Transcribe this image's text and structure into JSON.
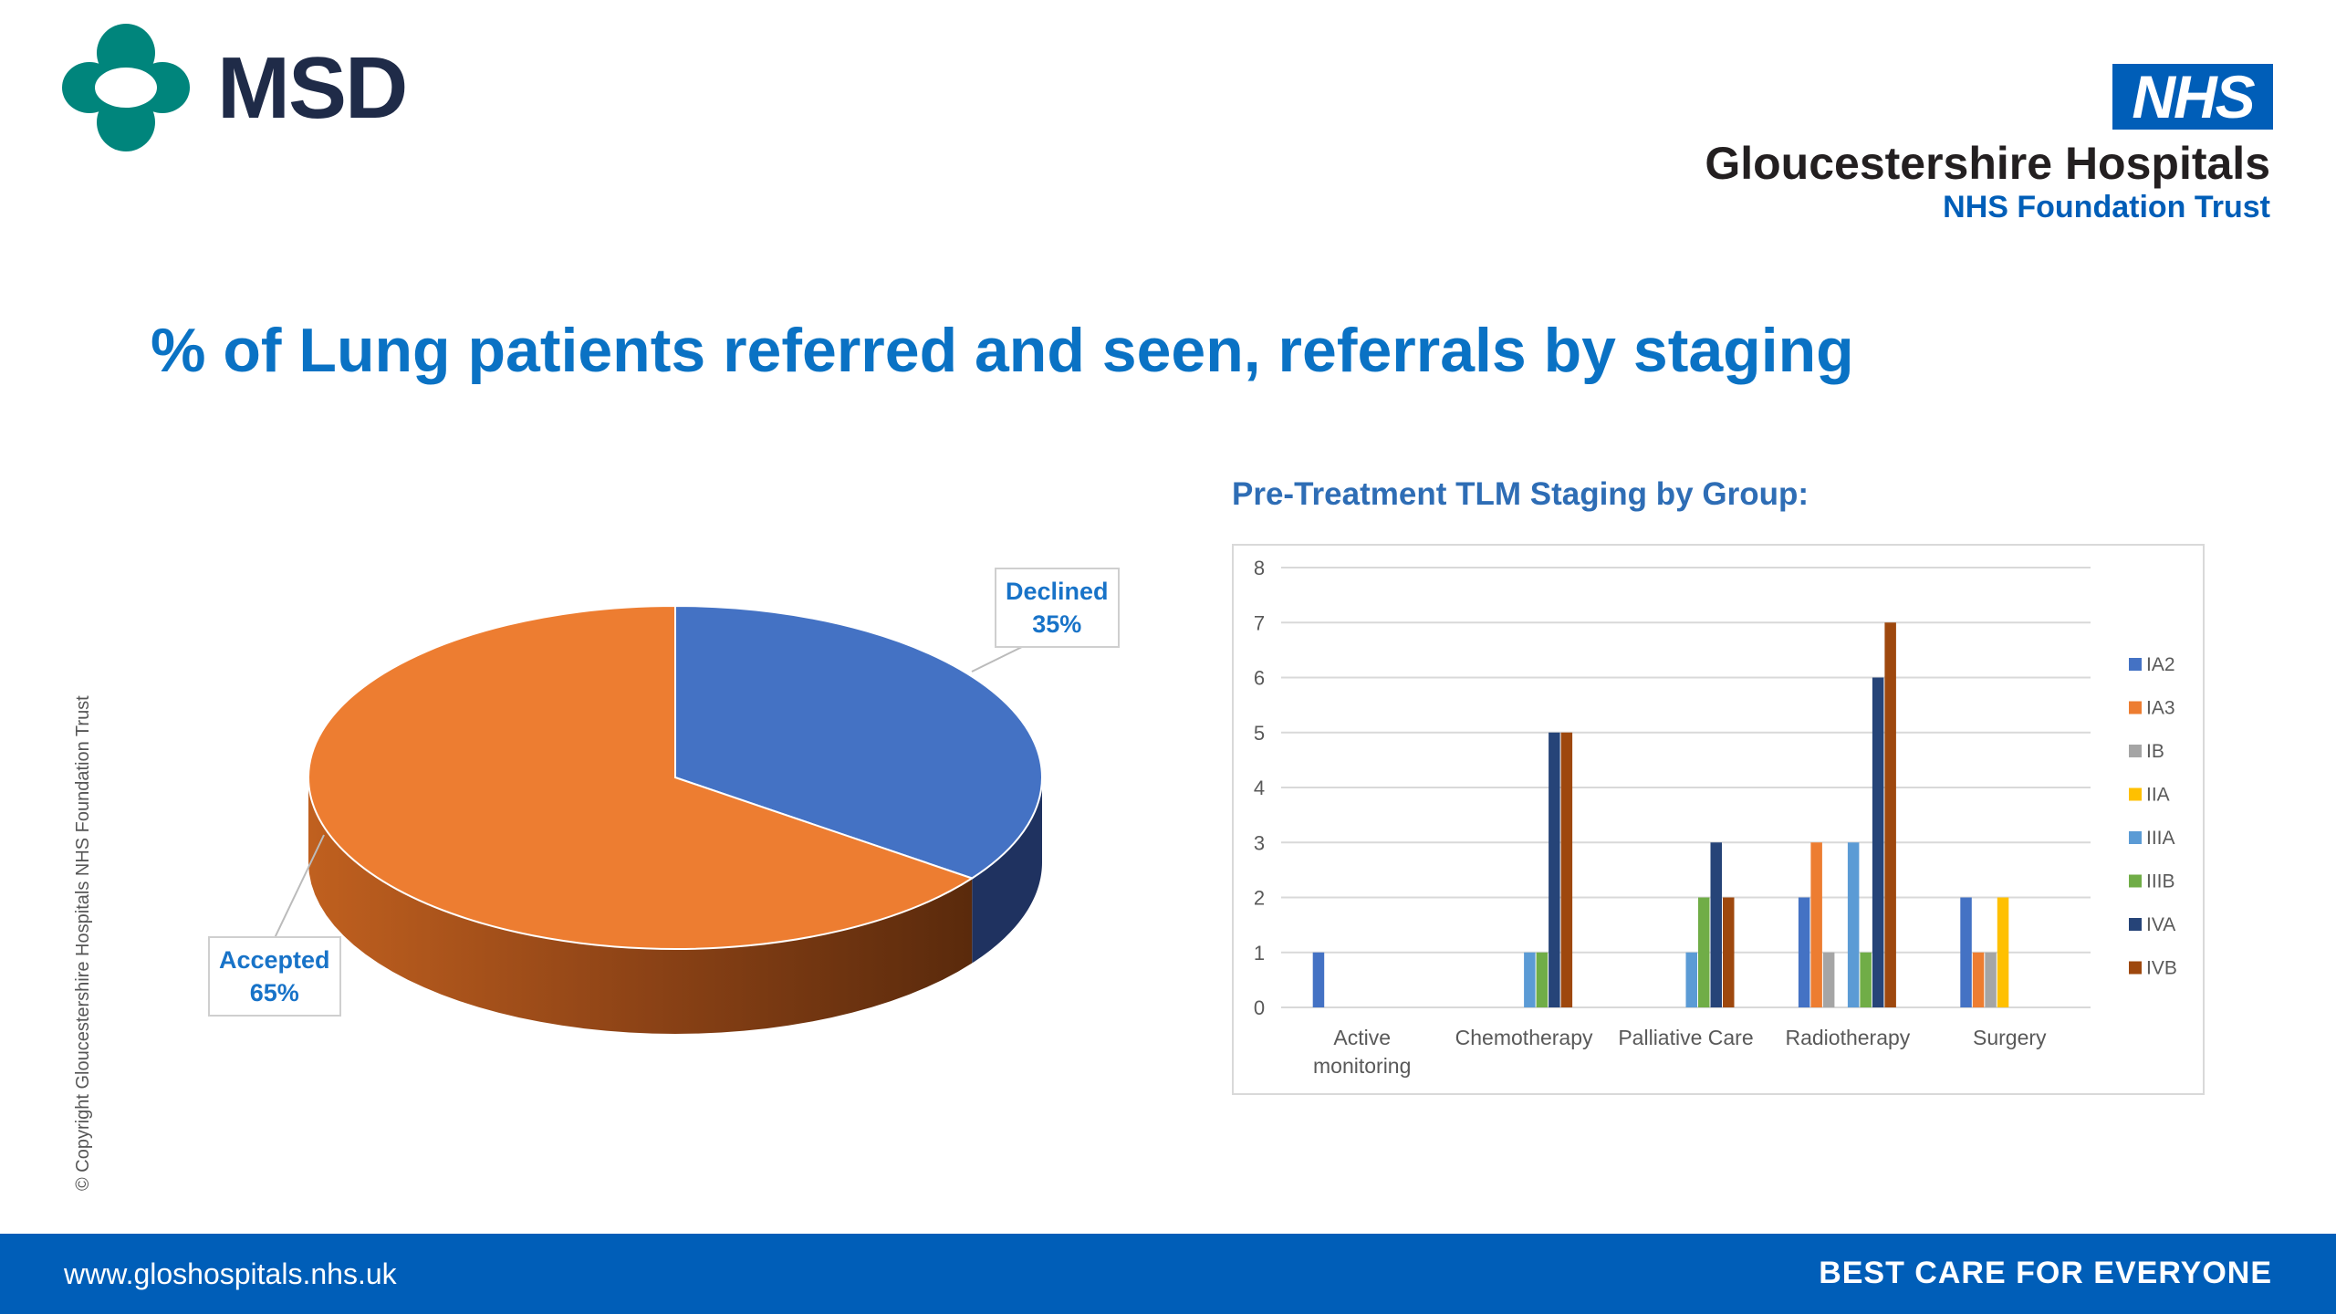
{
  "header": {
    "logo_left": "MSD",
    "logo_right_badge": "NHS",
    "trust_name": "Gloucestershire Hospitals",
    "trust_sub": "NHS Foundation Trust"
  },
  "title": "% of Lung patients referred and seen, referrals by staging",
  "copyright": "© Copyright Gloucestershire Hospitals NHS Foundation Trust",
  "footer": {
    "url": "www.gloshospitals.nhs.uk",
    "slogan": "BEST CARE FOR EVERYONE"
  },
  "colors": {
    "brand": "#005eb8",
    "title": "#0a72c4"
  },
  "chart_data": [
    {
      "type": "pie",
      "title": "",
      "slices": [
        {
          "label": "Declined",
          "value": 35,
          "display": "35%",
          "color": "#4472c4"
        },
        {
          "label": "Accepted",
          "value": 65,
          "display": "65%",
          "color": "#ed7d31"
        }
      ]
    },
    {
      "type": "bar",
      "title": "Pre-Treatment TLM Staging by Group:",
      "categories": [
        "Active monitoring",
        "Chemotherapy",
        "Palliative Care",
        "Radiotherapy",
        "Surgery"
      ],
      "category_lines": [
        [
          "Active",
          "monitoring"
        ],
        [
          "Chemotherapy"
        ],
        [
          "Palliative Care"
        ],
        [
          "Radiotherapy"
        ],
        [
          "Surgery"
        ]
      ],
      "ylim": [
        0,
        8
      ],
      "yticks": [
        "0",
        "1",
        "2",
        "3",
        "4",
        "5",
        "6",
        "7",
        "8"
      ],
      "grid": true,
      "legend": "right",
      "series": [
        {
          "name": "IA2",
          "color": "#4472c4",
          "values": [
            1,
            0,
            0,
            2,
            2
          ]
        },
        {
          "name": "IA3",
          "color": "#ed7d31",
          "values": [
            0,
            0,
            0,
            3,
            1
          ]
        },
        {
          "name": "IB",
          "color": "#a5a5a5",
          "values": [
            0,
            0,
            0,
            1,
            1
          ]
        },
        {
          "name": "IIA",
          "color": "#ffc000",
          "values": [
            0,
            0,
            0,
            0,
            2
          ]
        },
        {
          "name": "IIIA",
          "color": "#5b9bd5",
          "values": [
            0,
            1,
            1,
            3,
            0
          ]
        },
        {
          "name": "IIIB",
          "color": "#70ad47",
          "values": [
            0,
            1,
            2,
            1,
            0
          ]
        },
        {
          "name": "IVA",
          "color": "#264478",
          "values": [
            0,
            5,
            3,
            6,
            0
          ]
        },
        {
          "name": "IVB",
          "color": "#9e480e",
          "values": [
            0,
            5,
            2,
            7,
            0
          ]
        }
      ]
    }
  ]
}
